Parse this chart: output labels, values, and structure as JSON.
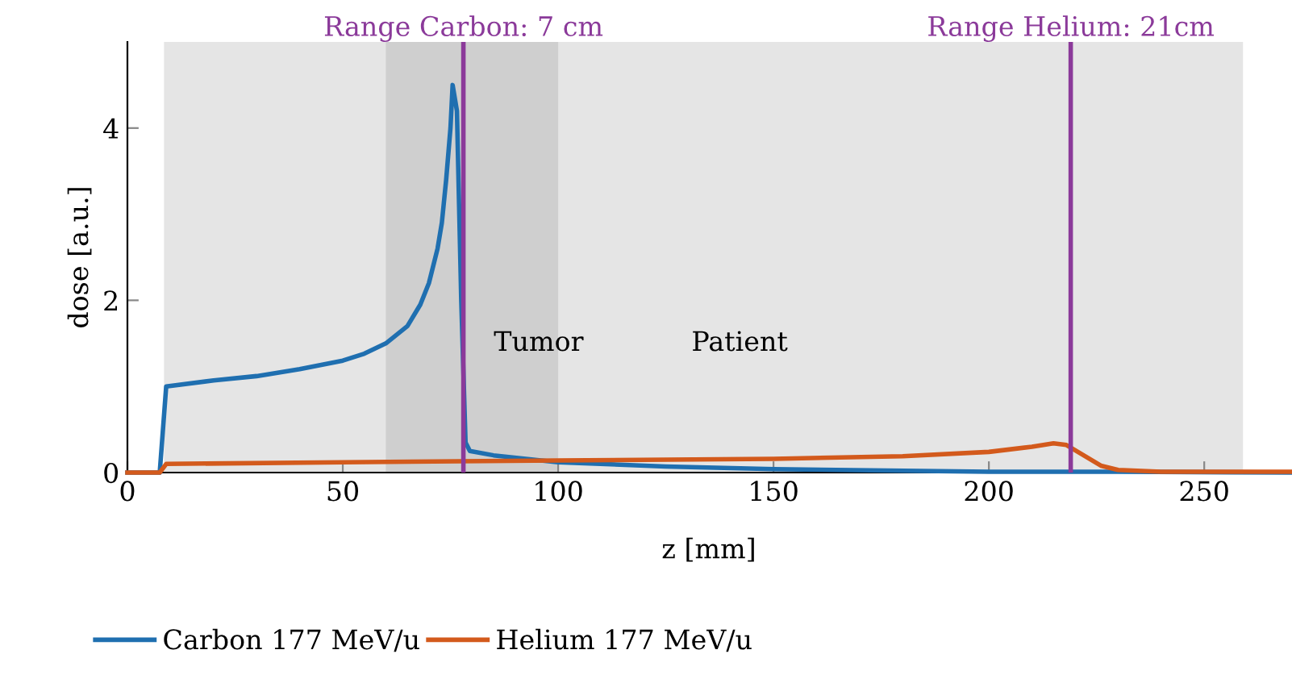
{
  "chart_data": {
    "type": "line",
    "xlabel": "z [mm]",
    "ylabel": "dose [a.u.]",
    "xlim": [
      0,
      270
    ],
    "ylim": [
      0,
      5
    ],
    "xticks": [
      0,
      50,
      100,
      150,
      200,
      250
    ],
    "yticks": [
      0,
      2,
      4
    ],
    "grid": false,
    "legend": "bottom",
    "line_style": "solid",
    "marker": "none",
    "series": [
      {
        "name": "Carbon 177 MeV/u",
        "color": "#1f6fb0",
        "x": [
          0,
          7.5,
          9,
          20,
          30,
          40,
          50,
          55,
          60,
          65,
          68,
          70,
          72,
          73,
          74,
          75,
          75.5,
          76.5,
          77.5,
          78.5,
          79.5,
          85,
          100,
          125,
          150,
          200,
          230,
          270
        ],
        "values": [
          0,
          0,
          1.0,
          1.07,
          1.12,
          1.2,
          1.3,
          1.38,
          1.5,
          1.7,
          1.95,
          2.2,
          2.6,
          2.9,
          3.4,
          4.0,
          4.5,
          4.2,
          2.0,
          0.35,
          0.25,
          0.2,
          0.12,
          0.07,
          0.04,
          0.01,
          0.01,
          0
        ]
      },
      {
        "name": "Helium 177 MeV/u",
        "color": "#d35a1c",
        "x": [
          0,
          7.5,
          9,
          50,
          100,
          150,
          180,
          200,
          210,
          215,
          218,
          222,
          226,
          230,
          240,
          270
        ],
        "values": [
          0,
          0,
          0.1,
          0.12,
          0.14,
          0.16,
          0.19,
          0.24,
          0.3,
          0.34,
          0.32,
          0.2,
          0.08,
          0.03,
          0.01,
          0.01
        ]
      }
    ],
    "bands": [
      {
        "axis": "x",
        "from": 8.5,
        "to": 259,
        "color": "#e5e5e5"
      },
      {
        "axis": "x",
        "from": 60,
        "to": 100,
        "color": "#cfcfcf"
      }
    ],
    "ref_lines": [
      {
        "axis": "x",
        "value": 78,
        "color": "#8b3a9a"
      },
      {
        "axis": "x",
        "value": 219,
        "color": "#8b3a9a"
      }
    ],
    "annotations": [
      "Range Carbon: 7 cm",
      "Range Helium: 21cm",
      "Tumor",
      "Patient"
    ]
  }
}
